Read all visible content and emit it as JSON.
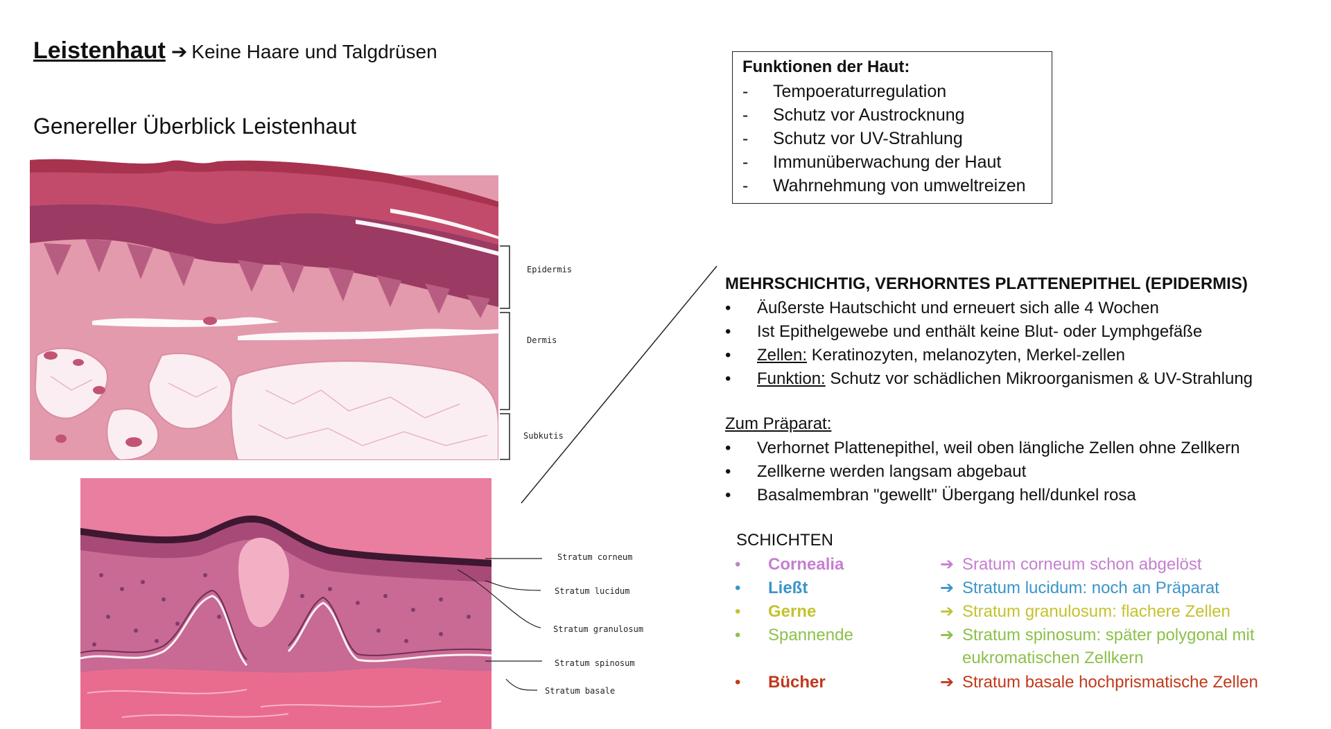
{
  "header": {
    "title": "Leistenhaut",
    "arrow": "➔",
    "title_note": "Keine Haare und Talgdrüsen",
    "subtitle": "Genereller Überblick Leistenhaut"
  },
  "overview_labels": {
    "epidermis": "Epidermis",
    "dermis": "Dermis",
    "subkutis": "Subkutis"
  },
  "detail_labels": {
    "corneum": "Stratum corneum",
    "lucidum": "Stratum lucidum",
    "granulosum": "Stratum granulosum",
    "spinosum": "Stratum spinosum",
    "basale": "Stratum basale"
  },
  "functions_box": {
    "title": "Funktionen der Haut:",
    "dash": "-",
    "items": [
      "Tempoeraturregulation",
      "Schutz vor Austrocknung",
      "Schutz vor UV-Strahlung",
      "Immunüberwachung der Haut",
      "Wahrnehmung von umweltreizen"
    ]
  },
  "epithel": {
    "title": "MEHRSCHICHTIG, VERHORNTES PLATTENEPITHEL (EPIDERMIS)",
    "bullet": "•",
    "item1": "Äußerste Hautschicht und erneuert sich alle 4 Wochen",
    "item2": "Ist Epithelgewebe und enthält keine Blut- oder Lymphgefäße",
    "item3_label": "Zellen:",
    "item3_text": " Keratinozyten, melanozyten, Merkel-zellen",
    "item4_label": "Funktion:",
    "item4_text": " Schutz vor schädlichen Mikroorganismen & UV-Strahlung"
  },
  "praeparat": {
    "title": "Zum Präparat:",
    "items": [
      "Verhornet Plattenepithel, weil oben längliche Zellen ohne Zellkern",
      "Zellkerne werden langsam abgebaut",
      "Basalmembran \"gewellt\" Übergang hell/dunkel rosa"
    ]
  },
  "schichten": {
    "title": "SCHICHTEN",
    "rows": [
      {
        "mnemonic": "Cornealia",
        "arrow": "➔",
        "text": "Sratum corneum schon abgelöst",
        "color": "#c57fd0"
      },
      {
        "mnemonic": "Ließt",
        "arrow": "➔",
        "text": "Stratum lucidum: noch an Präparat",
        "color": "#3a95c8"
      },
      {
        "mnemonic": "Gerne",
        "arrow": "➔",
        "text": "Stratum granulosum: flachere Zellen",
        "color": "#c4c22f"
      },
      {
        "mnemonic": "Spannende",
        "arrow": "➔",
        "text": "Stratum spinosum: später polygonal mit",
        "text2": "eukromatischen Zellkern",
        "color": "#8cc04c"
      },
      {
        "mnemonic": "Bücher",
        "arrow": "➔",
        "text": "Stratum basale hochprismatische Zellen",
        "color": "#c0391b"
      }
    ]
  }
}
